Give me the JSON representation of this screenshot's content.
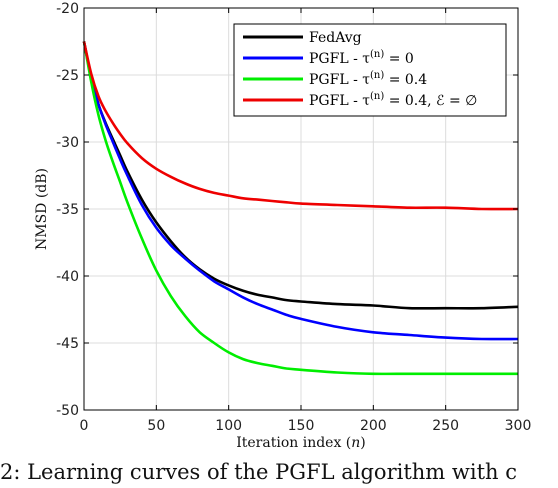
{
  "chart_data": {
    "type": "line",
    "xlabel": "Iteration index (n)",
    "ylabel": "NMSD (dB)",
    "xlim": [
      0,
      300
    ],
    "ylim": [
      -50,
      -20
    ],
    "xticks": [
      0,
      50,
      100,
      150,
      200,
      250,
      300
    ],
    "yticks": [
      -50,
      -45,
      -40,
      -35,
      -30,
      -25,
      -20
    ],
    "grid": true,
    "legend_position": "top-right",
    "x": [
      0,
      5,
      10,
      15,
      20,
      25,
      30,
      40,
      50,
      60,
      70,
      80,
      90,
      100,
      110,
      120,
      130,
      140,
      150,
      175,
      200,
      225,
      250,
      275,
      300
    ],
    "series": [
      {
        "name": "FedAvg",
        "color": "#000000",
        "values": [
          -22.5,
          -25.2,
          -27.2,
          -28.6,
          -29.8,
          -31.0,
          -32.2,
          -34.3,
          -36.0,
          -37.4,
          -38.6,
          -39.5,
          -40.2,
          -40.7,
          -41.1,
          -41.4,
          -41.6,
          -41.8,
          -41.9,
          -42.1,
          -42.2,
          -42.4,
          -42.4,
          -42.4,
          -42.3
        ]
      },
      {
        "name": "PGFL - τ(n) = 0",
        "color": "#0000ff",
        "values": [
          -22.5,
          -25.2,
          -27.2,
          -28.7,
          -30.0,
          -31.3,
          -32.5,
          -34.7,
          -36.4,
          -37.7,
          -38.7,
          -39.6,
          -40.4,
          -41.0,
          -41.6,
          -42.1,
          -42.5,
          -42.9,
          -43.2,
          -43.8,
          -44.2,
          -44.4,
          -44.6,
          -44.7,
          -44.7
        ]
      },
      {
        "name": "PGFL - τ(n) = 0.4",
        "color": "#00ee00",
        "values": [
          -22.5,
          -25.5,
          -28.0,
          -29.9,
          -31.5,
          -33.0,
          -34.5,
          -37.2,
          -39.6,
          -41.5,
          -43.0,
          -44.2,
          -45.0,
          -45.7,
          -46.2,
          -46.5,
          -46.7,
          -46.9,
          -47.0,
          -47.2,
          -47.3,
          -47.3,
          -47.3,
          -47.3,
          -47.3
        ]
      },
      {
        "name": "PGFL - τ(n) = 0.4, ℰ = ∅",
        "color": "#ee0000",
        "values": [
          -22.5,
          -24.9,
          -26.6,
          -27.7,
          -28.6,
          -29.4,
          -30.1,
          -31.2,
          -32.0,
          -32.6,
          -33.1,
          -33.5,
          -33.8,
          -34.0,
          -34.2,
          -34.3,
          -34.4,
          -34.5,
          -34.6,
          -34.7,
          -34.8,
          -34.9,
          -34.9,
          -35.0,
          -35.0
        ]
      }
    ]
  },
  "legend": {
    "entries": [
      {
        "base": "FedAvg",
        "plain": "FedAvg"
      },
      {
        "base": "PGFL - τ",
        "sup": "(n)",
        "rest": " = 0",
        "plain": "PGFL - τ(n) = 0"
      },
      {
        "base": "PGFL - τ",
        "sup": "(n)",
        "rest": " = 0.4",
        "plain": "PGFL - τ(n) = 0.4"
      },
      {
        "base": "PGFL - τ",
        "sup": "(n)",
        "rest": " = 0.4, ℰ = ∅",
        "plain": "PGFL - τ(n) = 0.4, ℰ = ∅"
      }
    ]
  },
  "caption": {
    "text": "2: Learning curves of the PGFL algorithm with c"
  }
}
